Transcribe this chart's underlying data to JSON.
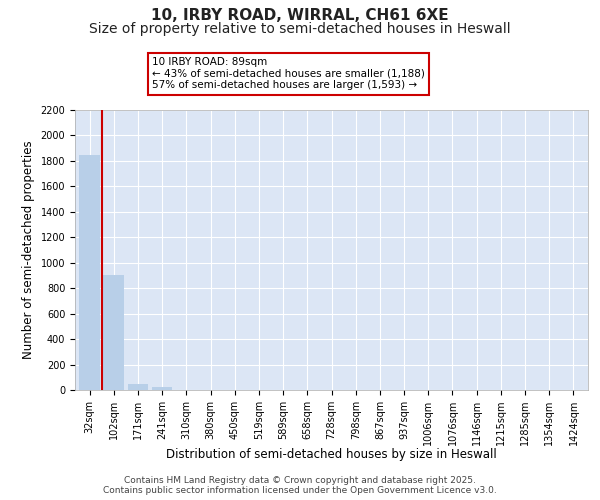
{
  "title1": "10, IRBY ROAD, WIRRAL, CH61 6XE",
  "title2": "Size of property relative to semi-detached houses in Heswall",
  "xlabel": "Distribution of semi-detached houses by size in Heswall",
  "ylabel": "Number of semi-detached properties",
  "categories": [
    "32sqm",
    "102sqm",
    "171sqm",
    "241sqm",
    "310sqm",
    "380sqm",
    "450sqm",
    "519sqm",
    "589sqm",
    "658sqm",
    "728sqm",
    "798sqm",
    "867sqm",
    "937sqm",
    "1006sqm",
    "1076sqm",
    "1146sqm",
    "1215sqm",
    "1285sqm",
    "1354sqm",
    "1424sqm"
  ],
  "values": [
    1850,
    900,
    50,
    20,
    3,
    1,
    0,
    0,
    0,
    0,
    0,
    0,
    0,
    0,
    0,
    0,
    0,
    0,
    0,
    0,
    0
  ],
  "bar_color": "#b8cfe8",
  "red_line_color": "#cc0000",
  "red_line_x": 0.5,
  "annotation_text": "10 IRBY ROAD: 89sqm\n← 43% of semi-detached houses are smaller (1,188)\n57% of semi-detached houses are larger (1,593) →",
  "annotation_box_color": "#ffffff",
  "annotation_box_edge": "#cc0000",
  "ylim": [
    0,
    2200
  ],
  "yticks": [
    0,
    200,
    400,
    600,
    800,
    1000,
    1200,
    1400,
    1600,
    1800,
    2000,
    2200
  ],
  "background_color": "#dce6f5",
  "grid_color": "#ffffff",
  "footer": "Contains HM Land Registry data © Crown copyright and database right 2025.\nContains public sector information licensed under the Open Government Licence v3.0.",
  "title_fontsize": 11,
  "subtitle_fontsize": 10,
  "tick_fontsize": 7,
  "ylabel_fontsize": 8.5,
  "xlabel_fontsize": 8.5,
  "footer_fontsize": 6.5
}
